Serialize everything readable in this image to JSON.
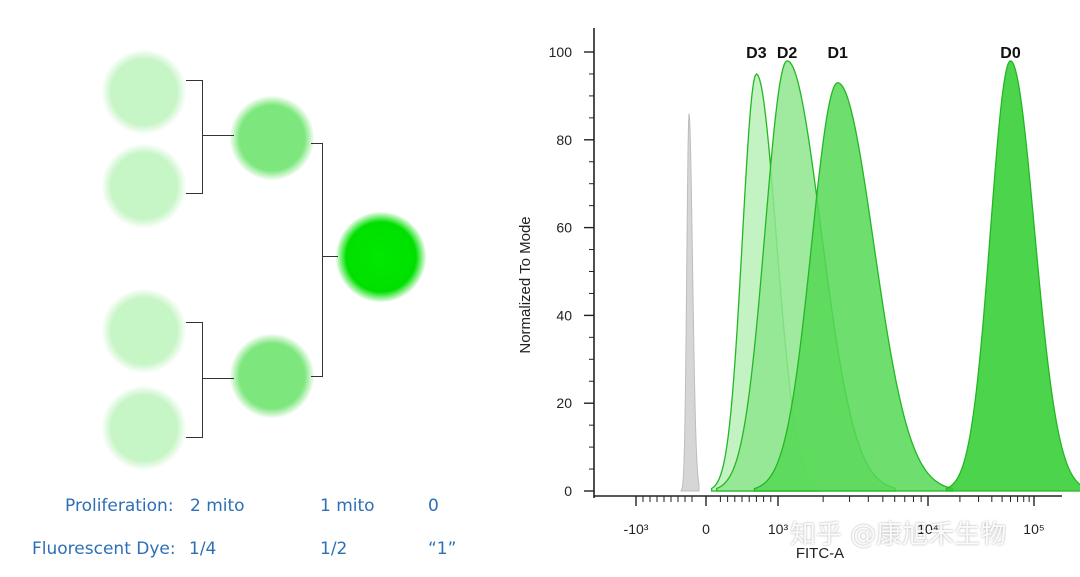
{
  "diagram": {
    "rows": [
      {
        "label": "Proliferation:",
        "values": [
          "2 mito",
          "1 mito",
          "0"
        ]
      },
      {
        "label": "Fluorescent Dye:",
        "values": [
          "1/4",
          "1/2",
          "“1”"
        ]
      }
    ],
    "colors": {
      "light": "#c6f5c6",
      "mid": "#7de77d",
      "bright": "#00e000",
      "label": "#2d6fb5"
    }
  },
  "chart_data": {
    "type": "area",
    "xlabel": "FITC-A",
    "ylabel": "Normalized To Mode",
    "ylim": [
      0,
      100
    ],
    "y_ticks": [
      0,
      20,
      40,
      60,
      80,
      100
    ],
    "x_scale": "biexponential",
    "x_tick_labels": [
      "-10³",
      "0",
      "10³",
      "10⁴",
      "10⁵"
    ],
    "x_tick_values": [
      -1000,
      0,
      1000,
      10000,
      100000
    ],
    "series": [
      {
        "name": "D3",
        "color": "#b8f0b8",
        "peak_x": 700,
        "peak_y": 95
      },
      {
        "name": "D2",
        "color": "#8ee68e",
        "peak_x": 1150,
        "peak_y": 98
      },
      {
        "name": "D1",
        "color": "#55d855",
        "peak_x": 2500,
        "peak_y": 93
      },
      {
        "name": "D0",
        "color": "#2ecc2e",
        "peak_x": 60000,
        "peak_y": 98
      }
    ],
    "control": {
      "color": "#bdbdbd",
      "peak_x": -100,
      "peak_y": 86
    }
  },
  "watermark": "知乎 @康旭禾生物"
}
